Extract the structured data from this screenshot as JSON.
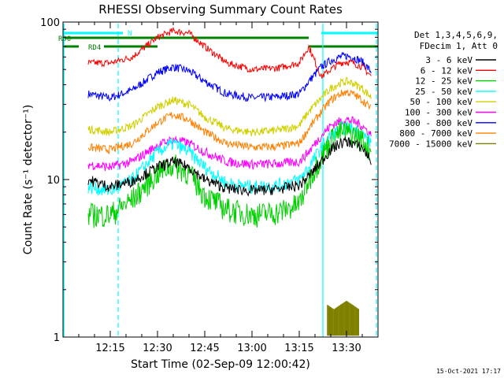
{
  "chart_data": {
    "type": "line",
    "title": "RHESSI Observing Summary Count Rates",
    "xlabel": "Start Time (02-Sep-09 12:00:42)",
    "ylabel": "Count Rate (s⁻¹ detector⁻¹)",
    "x_tick_labels": [
      "12:15",
      "12:30",
      "12:45",
      "13:00",
      "13:15",
      "13:30"
    ],
    "x_ticks_minutes": [
      15,
      30,
      45,
      60,
      75,
      90
    ],
    "xlim_minutes": [
      0,
      100
    ],
    "y_scale": "log",
    "ylim": [
      1,
      100
    ],
    "y_tick_labels": [
      "1",
      "10",
      "100"
    ],
    "y_tick_values": [
      1,
      10,
      100
    ],
    "legend_header": [
      "Det 1,3,4,5,6,9,",
      "FDecim 1, Att 0"
    ],
    "series": [
      {
        "name": "3 - 6 keV",
        "color": "#000000",
        "minutes": [
          8,
          15,
          22,
          30,
          35,
          40,
          45,
          52,
          60,
          68,
          75,
          78,
          82,
          85,
          88,
          90,
          92,
          95,
          98
        ],
        "values": [
          10,
          9,
          9.8,
          12,
          13,
          12,
          10,
          8.8,
          8.5,
          8.7,
          9.2,
          10.5,
          13,
          15.5,
          17,
          17.5,
          17,
          16,
          13
        ]
      },
      {
        "name": "6 - 12 keV",
        "color": "#ff0000",
        "minutes": [
          8,
          15,
          22,
          30,
          35,
          40,
          45,
          52,
          60,
          68,
          75,
          78,
          82,
          85,
          88,
          90,
          92,
          95,
          98
        ],
        "values": [
          55,
          55,
          60,
          80,
          88,
          85,
          70,
          55,
          50,
          51,
          55,
          70,
          45,
          50,
          55,
          56,
          55,
          52,
          45
        ]
      },
      {
        "name": "12 - 25 keV",
        "color": "#00d000",
        "minutes": [
          8,
          15,
          22,
          30,
          35,
          40,
          45,
          52,
          60,
          68,
          75,
          78,
          82,
          85,
          88,
          90,
          92,
          95,
          98
        ],
        "values": [
          6,
          6,
          7.5,
          11,
          12.5,
          11,
          8,
          6.5,
          6,
          6.2,
          7,
          10,
          14,
          18,
          20,
          20,
          19.5,
          18,
          15
        ]
      },
      {
        "name": "25 - 50 keV",
        "color": "#00ffff",
        "minutes": [
          8,
          15,
          22,
          30,
          35,
          40,
          45,
          52,
          60,
          68,
          75,
          78,
          82,
          85,
          88,
          90,
          92,
          95,
          98
        ],
        "values": [
          9,
          8.5,
          10,
          15,
          17,
          15,
          12,
          9.5,
          9,
          9.2,
          10,
          12,
          16,
          19,
          21,
          21.5,
          21,
          19.5,
          17
        ]
      },
      {
        "name": "50 - 100 keV",
        "color": "#d0d000",
        "minutes": [
          8,
          15,
          22,
          30,
          35,
          40,
          45,
          52,
          60,
          68,
          75,
          78,
          82,
          85,
          88,
          90,
          92,
          95,
          98
        ],
        "values": [
          21,
          20,
          22,
          29,
          32,
          30,
          25,
          21,
          20,
          20.5,
          22,
          27,
          33,
          38,
          41,
          42,
          41,
          38,
          33
        ]
      },
      {
        "name": "100 - 300 keV",
        "color": "#ff00ff",
        "minutes": [
          8,
          15,
          22,
          30,
          35,
          40,
          45,
          52,
          60,
          68,
          75,
          78,
          82,
          85,
          88,
          90,
          92,
          95,
          98
        ],
        "values": [
          12.5,
          12,
          13,
          16.5,
          18,
          17,
          15,
          13,
          12.5,
          12.6,
          13,
          15,
          19,
          22,
          23.5,
          24,
          23.5,
          22,
          19
        ]
      },
      {
        "name": "300 - 800 keV",
        "color": "#0000ff",
        "minutes": [
          8,
          15,
          22,
          30,
          35,
          40,
          45,
          52,
          60,
          68,
          75,
          78,
          82,
          85,
          88,
          90,
          92,
          95,
          98
        ],
        "values": [
          35,
          33,
          37,
          48,
          52,
          49,
          42,
          35,
          33,
          33.5,
          35,
          42,
          52,
          57,
          60,
          61,
          60,
          56,
          48
        ]
      },
      {
        "name": "800 - 7000 keV",
        "color": "#ff8000",
        "minutes": [
          8,
          15,
          22,
          30,
          35,
          40,
          45,
          52,
          60,
          68,
          75,
          78,
          82,
          85,
          88,
          90,
          92,
          95,
          98
        ],
        "values": [
          16,
          15.5,
          17,
          23,
          26,
          24,
          20,
          17,
          16,
          16.2,
          17,
          21,
          27,
          32,
          35,
          36,
          35,
          32,
          28
        ]
      },
      {
        "name": "7000 - 15000 keV",
        "color": "#808000",
        "minutes": [
          84,
          86,
          88,
          90,
          92,
          94
        ],
        "values": [
          1.6,
          1.5,
          1.6,
          1.7,
          1.6,
          1.5
        ]
      }
    ],
    "flags": [
      {
        "label": "N",
        "color": "#00ffff",
        "segments": [
          [
            0,
            19
          ],
          [
            82,
            100
          ]
        ]
      },
      {
        "label": "RD0",
        "color": "#008000",
        "segments": [
          [
            0,
            78
          ]
        ]
      },
      {
        "label": "RD4",
        "color": "#008000",
        "segments": [
          [
            0,
            5
          ],
          [
            13,
            30
          ],
          [
            78,
            100
          ]
        ]
      }
    ],
    "vertical_lines": [
      {
        "minute": 0.3,
        "style": "solid",
        "color": "#00ffff"
      },
      {
        "minute": 17.5,
        "style": "dashed",
        "color": "#00ffff"
      },
      {
        "minute": 82.5,
        "style": "solid",
        "color": "#00ffff"
      },
      {
        "minute": 99.5,
        "style": "dashed",
        "color": "#00ffff"
      }
    ],
    "grid": false,
    "legend_position": "right"
  },
  "footer": {
    "date_stamp": "15-Oct-2021 17:17"
  }
}
